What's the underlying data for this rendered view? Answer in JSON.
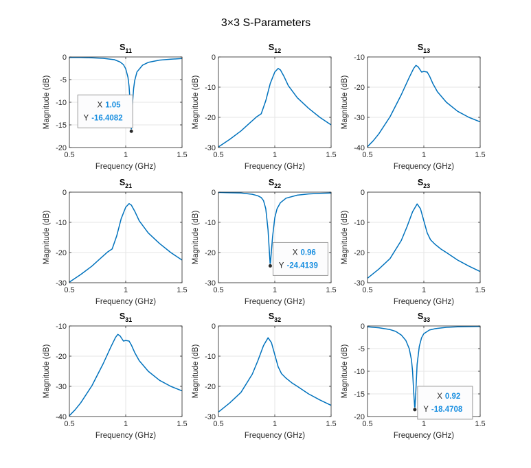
{
  "figure": {
    "title": "3×3 S-Parameters"
  },
  "colors": {
    "line": "#0072BD",
    "grid": "#e6e6e6",
    "axis": "#262626",
    "datatip_value": "#1a8fe0"
  },
  "chart_data": [
    {
      "type": "line",
      "title_main": "S",
      "title_sub": "11",
      "xlabel": "Frequency (GHz)",
      "ylabel": "Magnitude (dB)",
      "xlim": [
        0.5,
        1.5
      ],
      "ylim": [
        -20,
        0
      ],
      "xticks": [
        "0.5",
        "1",
        "1.5"
      ],
      "yticks": [
        "0",
        "-5",
        "-10",
        "-15",
        "-20"
      ],
      "grid": true,
      "x": [
        0.5,
        0.6,
        0.7,
        0.8,
        0.9,
        0.95,
        0.98,
        1.0,
        1.02,
        1.03,
        1.04,
        1.05,
        1.06,
        1.07,
        1.08,
        1.1,
        1.15,
        1.2,
        1.3,
        1.4,
        1.5
      ],
      "y": [
        -0.1,
        -0.1,
        -0.2,
        -0.3,
        -0.6,
        -1.1,
        -1.7,
        -2.6,
        -4.5,
        -6.5,
        -10.5,
        -16.41,
        -10.5,
        -7.0,
        -5.2,
        -3.3,
        -1.8,
        -1.2,
        -0.7,
        -0.5,
        -0.35
      ],
      "datatip": {
        "x": 1.05,
        "y": -16.4082,
        "x_label": "X",
        "y_label": "Y",
        "x_text": "1.05",
        "y_text": "-16.4082",
        "side": "left"
      }
    },
    {
      "type": "line",
      "title_main": "S",
      "title_sub": "12",
      "xlabel": "Frequency (GHz)",
      "ylabel": "Magnitude (dB)",
      "xlim": [
        0.5,
        1.5
      ],
      "ylim": [
        -30,
        0
      ],
      "xticks": [
        "0.5",
        "1",
        "1.5"
      ],
      "yticks": [
        "0",
        "-10",
        "-20",
        "-30"
      ],
      "grid": true,
      "x": [
        0.5,
        0.6,
        0.7,
        0.78,
        0.84,
        0.88,
        0.92,
        0.96,
        1.0,
        1.03,
        1.05,
        1.08,
        1.12,
        1.2,
        1.3,
        1.4,
        1.5
      ],
      "y": [
        -29.8,
        -27.3,
        -24.5,
        -21.8,
        -19.8,
        -18.8,
        -14.5,
        -8.8,
        -5.0,
        -3.8,
        -4.3,
        -6.3,
        -9.5,
        -13.5,
        -17.0,
        -20.0,
        -22.5
      ]
    },
    {
      "type": "line",
      "title_main": "S",
      "title_sub": "13",
      "xlabel": "Frequency (GHz)",
      "ylabel": "Magnitude (dB)",
      "xlim": [
        0.5,
        1.5
      ],
      "ylim": [
        -40,
        -10
      ],
      "xticks": [
        "0.5",
        "1",
        "1.5"
      ],
      "yticks": [
        "-10",
        "-20",
        "-30",
        "-40"
      ],
      "grid": true,
      "x": [
        0.5,
        0.55,
        0.6,
        0.7,
        0.8,
        0.87,
        0.91,
        0.93,
        0.95,
        0.98,
        1.0,
        1.03,
        1.05,
        1.08,
        1.12,
        1.2,
        1.3,
        1.4,
        1.5
      ],
      "y": [
        -39.7,
        -37.8,
        -35.5,
        -29.8,
        -22.5,
        -16.8,
        -13.8,
        -12.8,
        -13.3,
        -15.0,
        -14.8,
        -15.0,
        -16.3,
        -18.8,
        -21.5,
        -25.0,
        -28.0,
        -30.0,
        -31.5
      ]
    },
    {
      "type": "line",
      "title_main": "S",
      "title_sub": "21",
      "xlabel": "Frequency (GHz)",
      "ylabel": "Magnitude (dB)",
      "xlim": [
        0.5,
        1.5
      ],
      "ylim": [
        -30,
        0
      ],
      "xticks": [
        "0.5",
        "1",
        "1.5"
      ],
      "yticks": [
        "0",
        "-10",
        "-20",
        "-30"
      ],
      "grid": true,
      "x": [
        0.5,
        0.6,
        0.7,
        0.78,
        0.84,
        0.88,
        0.92,
        0.96,
        1.0,
        1.03,
        1.05,
        1.08,
        1.12,
        1.2,
        1.3,
        1.4,
        1.5
      ],
      "y": [
        -29.8,
        -27.3,
        -24.5,
        -21.8,
        -19.8,
        -18.8,
        -14.5,
        -8.8,
        -5.0,
        -3.8,
        -4.3,
        -6.3,
        -9.5,
        -13.5,
        -17.0,
        -20.0,
        -22.5
      ]
    },
    {
      "type": "line",
      "title_main": "S",
      "title_sub": "22",
      "xlabel": "Frequency (GHz)",
      "ylabel": "Magnitude (dB)",
      "xlim": [
        0.5,
        1.5
      ],
      "ylim": [
        -30,
        0
      ],
      "xticks": [
        "0.5",
        "1",
        "1.5"
      ],
      "yticks": [
        "0",
        "-10",
        "-20",
        "-30"
      ],
      "grid": true,
      "x": [
        0.5,
        0.6,
        0.7,
        0.8,
        0.85,
        0.88,
        0.9,
        0.92,
        0.94,
        0.96,
        0.98,
        1.0,
        1.02,
        1.05,
        1.1,
        1.2,
        1.3,
        1.4,
        1.5
      ],
      "y": [
        -0.1,
        -0.2,
        -0.3,
        -0.7,
        -1.2,
        -1.8,
        -2.8,
        -5.5,
        -12.5,
        -24.41,
        -15.0,
        -8.5,
        -5.5,
        -3.5,
        -2.0,
        -1.0,
        -0.6,
        -0.4,
        -0.3
      ],
      "datatip": {
        "x": 0.96,
        "y": -24.4139,
        "x_label": "X",
        "y_label": "Y",
        "x_text": "0.96",
        "y_text": "-24.4139",
        "side": "right"
      }
    },
    {
      "type": "line",
      "title_main": "S",
      "title_sub": "23",
      "xlabel": "Frequency (GHz)",
      "ylabel": "Magnitude (dB)",
      "xlim": [
        0.5,
        1.5
      ],
      "ylim": [
        -30,
        0
      ],
      "xticks": [
        "0.5",
        "1",
        "1.5"
      ],
      "yticks": [
        "0",
        "-10",
        "-20",
        "-30"
      ],
      "grid": true,
      "x": [
        0.5,
        0.6,
        0.7,
        0.8,
        0.85,
        0.9,
        0.94,
        0.97,
        1.0,
        1.03,
        1.06,
        1.1,
        1.15,
        1.2,
        1.3,
        1.4,
        1.5
      ],
      "y": [
        -28.5,
        -25.5,
        -22.0,
        -16.0,
        -11.5,
        -6.5,
        -3.9,
        -5.5,
        -9.5,
        -13.5,
        -15.8,
        -17.3,
        -18.8,
        -20.0,
        -22.5,
        -24.5,
        -26.3
      ]
    },
    {
      "type": "line",
      "title_main": "S",
      "title_sub": "31",
      "xlabel": "Frequency (GHz)",
      "ylabel": "Magnitude (dB)",
      "xlim": [
        0.5,
        1.5
      ],
      "ylim": [
        -40,
        -10
      ],
      "xticks": [
        "0.5",
        "1",
        "1.5"
      ],
      "yticks": [
        "-10",
        "-20",
        "-30",
        "-40"
      ],
      "grid": true,
      "x": [
        0.5,
        0.55,
        0.6,
        0.7,
        0.8,
        0.87,
        0.91,
        0.93,
        0.95,
        0.98,
        1.0,
        1.03,
        1.05,
        1.08,
        1.12,
        1.2,
        1.3,
        1.4,
        1.5
      ],
      "y": [
        -39.7,
        -37.8,
        -35.5,
        -29.8,
        -22.5,
        -16.8,
        -13.8,
        -12.8,
        -13.3,
        -15.0,
        -14.8,
        -15.0,
        -16.3,
        -18.8,
        -21.5,
        -25.0,
        -28.0,
        -30.0,
        -31.5
      ]
    },
    {
      "type": "line",
      "title_main": "S",
      "title_sub": "32",
      "xlabel": "Frequency (GHz)",
      "ylabel": "Magnitude (dB)",
      "xlim": [
        0.5,
        1.5
      ],
      "ylim": [
        -30,
        0
      ],
      "xticks": [
        "0.5",
        "1",
        "1.5"
      ],
      "yticks": [
        "0",
        "-10",
        "-20",
        "-30"
      ],
      "grid": true,
      "x": [
        0.5,
        0.6,
        0.7,
        0.8,
        0.85,
        0.9,
        0.94,
        0.97,
        1.0,
        1.03,
        1.06,
        1.1,
        1.15,
        1.2,
        1.3,
        1.4,
        1.5
      ],
      "y": [
        -28.5,
        -25.5,
        -22.0,
        -16.0,
        -11.5,
        -6.5,
        -3.9,
        -5.5,
        -9.5,
        -13.5,
        -15.8,
        -17.3,
        -18.8,
        -20.0,
        -22.5,
        -24.5,
        -26.3
      ]
    },
    {
      "type": "line",
      "title_main": "S",
      "title_sub": "33",
      "xlabel": "Frequency (GHz)",
      "ylabel": "Magnitude (dB)",
      "xlim": [
        0.5,
        1.5
      ],
      "ylim": [
        -20,
        0
      ],
      "xticks": [
        "0.5",
        "1",
        "1.5"
      ],
      "yticks": [
        "0",
        "-5",
        "-10",
        "-15",
        "-20"
      ],
      "grid": true,
      "x": [
        0.5,
        0.6,
        0.7,
        0.75,
        0.8,
        0.84,
        0.87,
        0.89,
        0.9,
        0.91,
        0.92,
        0.93,
        0.94,
        0.96,
        0.98,
        1.0,
        1.05,
        1.1,
        1.2,
        1.3,
        1.5
      ],
      "y": [
        -0.2,
        -0.4,
        -0.8,
        -1.2,
        -2.0,
        -3.2,
        -5.0,
        -7.5,
        -10.0,
        -14.5,
        -18.47,
        -14.0,
        -8.5,
        -4.5,
        -2.6,
        -1.7,
        -0.9,
        -0.6,
        -0.3,
        -0.2,
        -0.1
      ],
      "datatip": {
        "x": 0.92,
        "y": -18.4708,
        "x_label": "X",
        "y_label": "Y",
        "x_text": "0.92",
        "y_text": "-18.4708",
        "side": "right"
      }
    }
  ]
}
